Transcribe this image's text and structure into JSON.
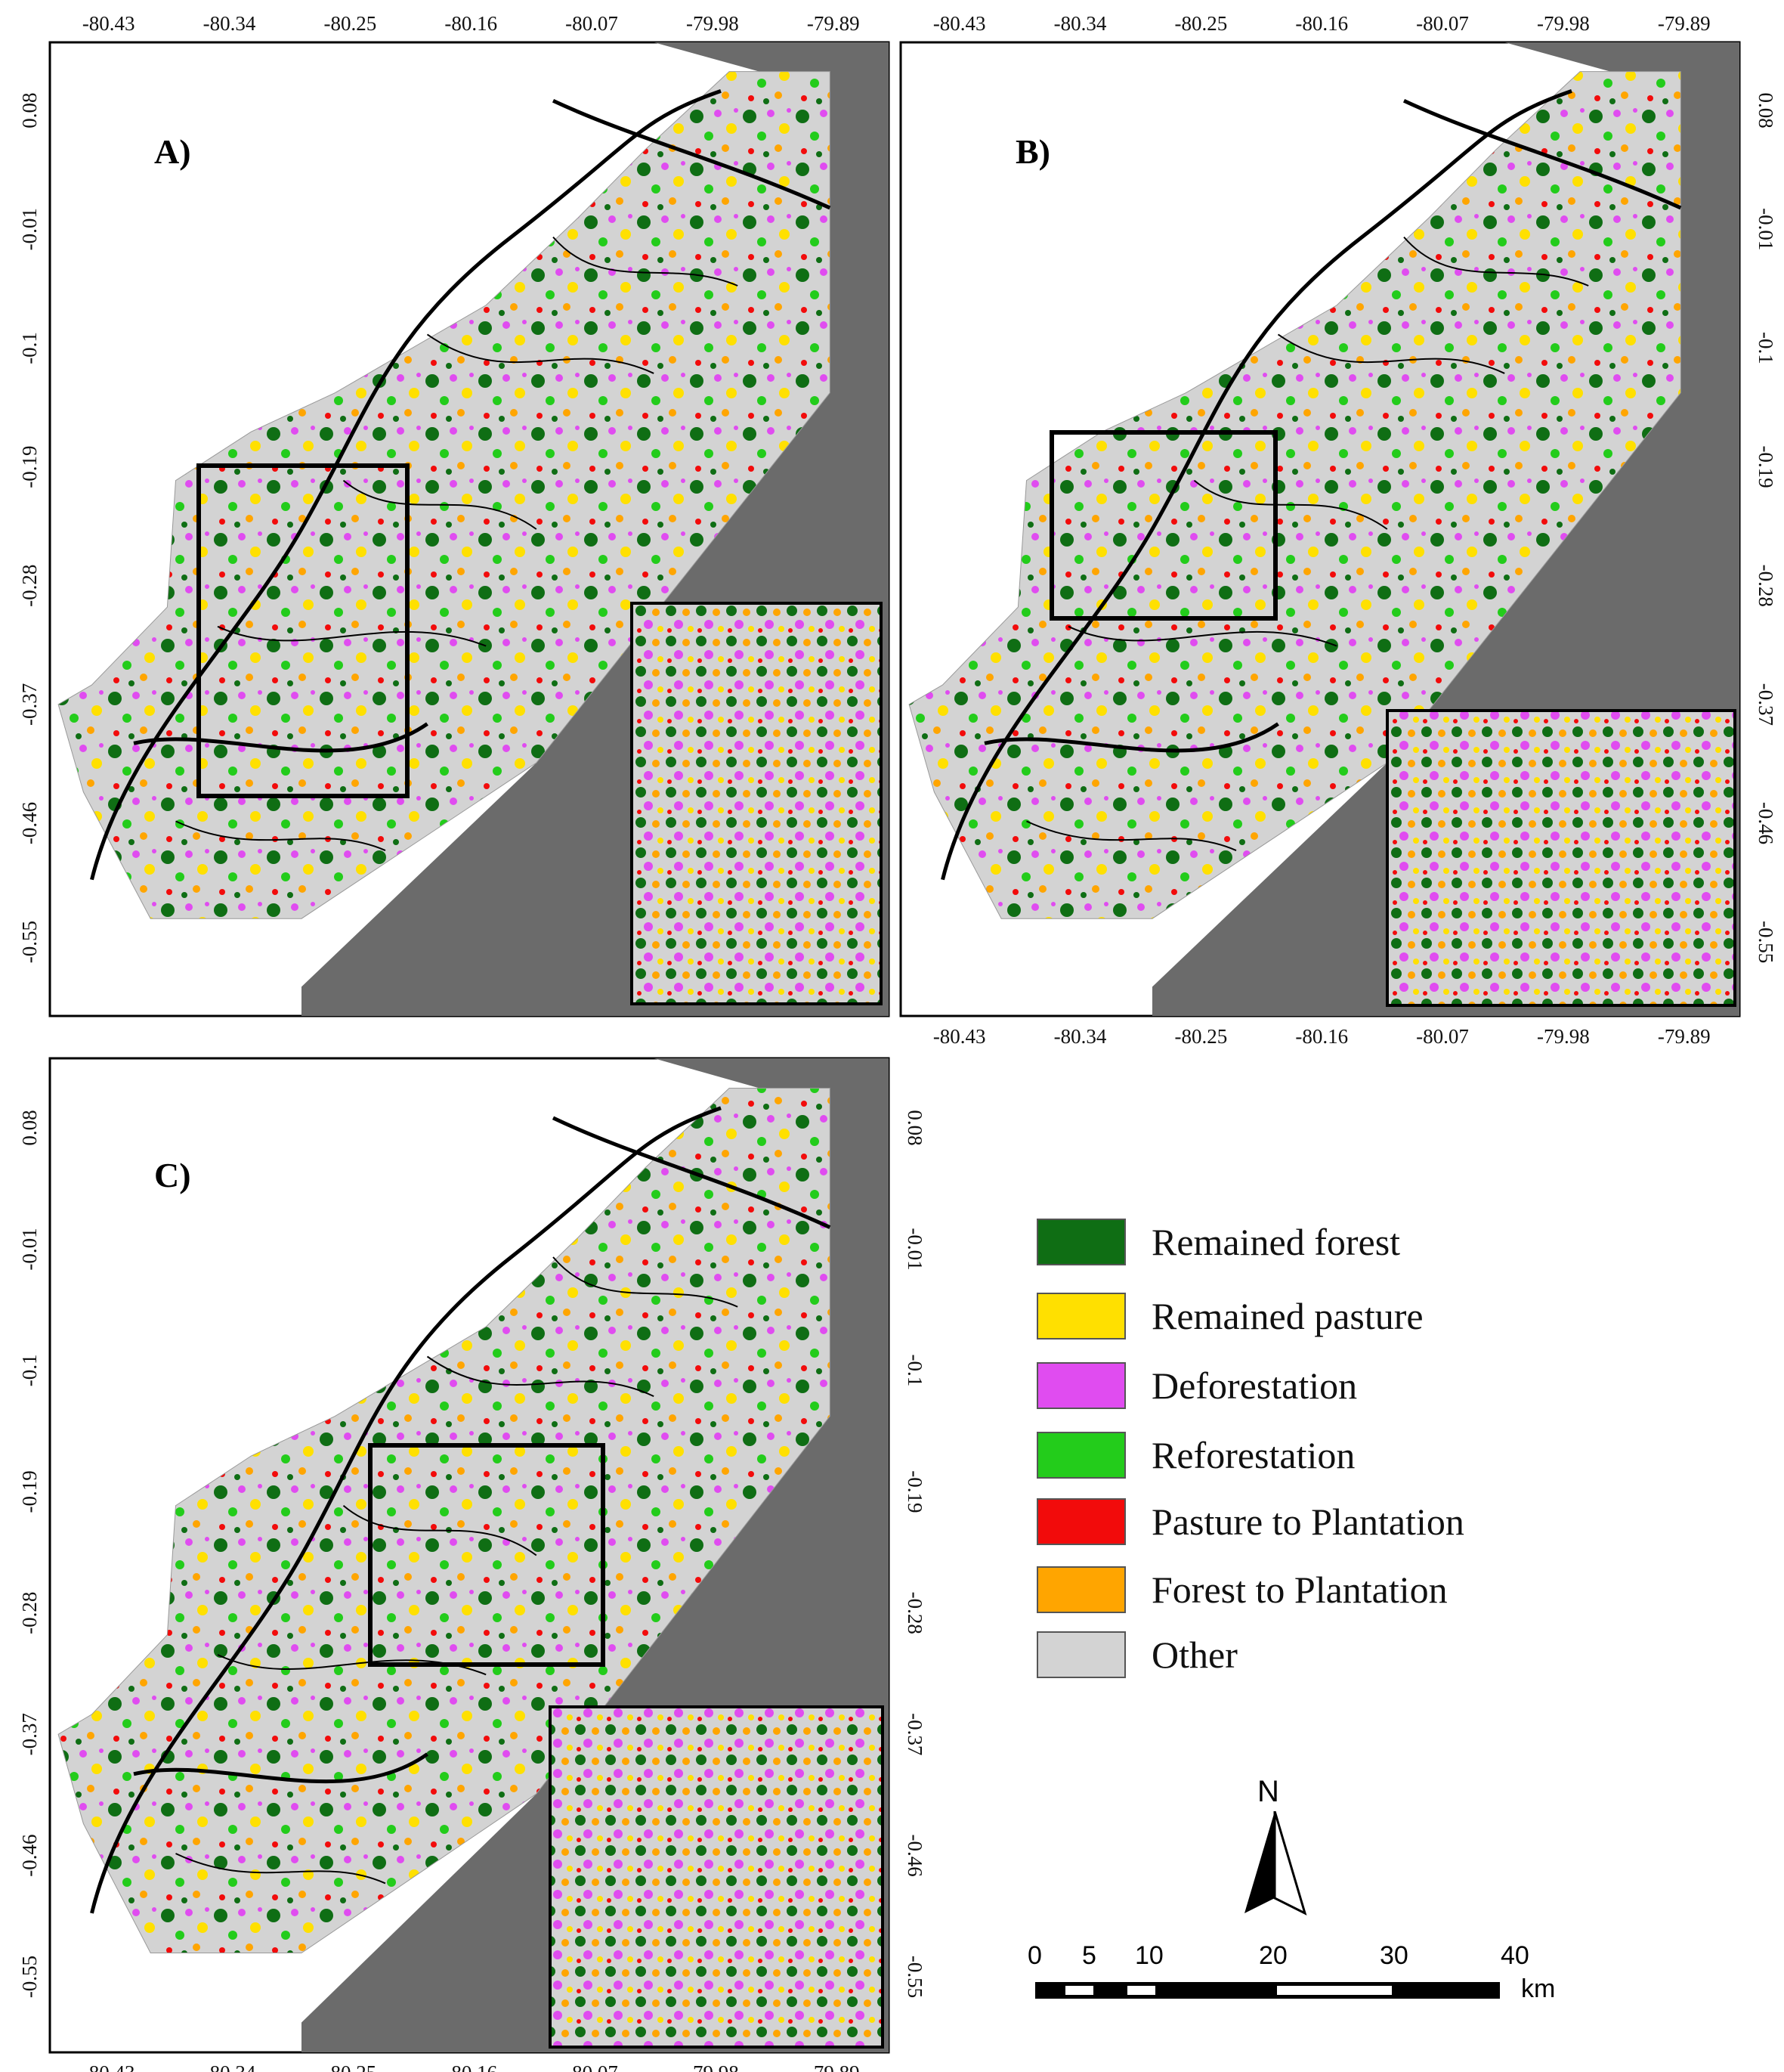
{
  "panels": [
    {
      "letter": "A)"
    },
    {
      "letter": "B)"
    },
    {
      "letter": "C)"
    }
  ],
  "axes": {
    "longitudes": [
      "-80.43",
      "-80.34",
      "-80.25",
      "-80.16",
      "-80.07",
      "-79.98",
      "-79.89"
    ],
    "latitudes": [
      "0.08",
      "-0.01",
      "-0.1",
      "-0.19",
      "-0.28",
      "-0.37",
      "-0.46",
      "-0.55"
    ]
  },
  "legend": [
    {
      "label": "Remained forest",
      "color": "#0f6e14"
    },
    {
      "label": "Remained pasture",
      "color": "#ffe000"
    },
    {
      "label": "Deforestation",
      "color": "#e04cf0"
    },
    {
      "label": "Reforestation",
      "color": "#23cc1b"
    },
    {
      "label": "Pasture to Plantation",
      "color": "#f20b0b"
    },
    {
      "label": "Forest to Plantation",
      "color": "#ffa500"
    },
    {
      "label": "Other",
      "color": "#d3d3d3"
    }
  ],
  "north_arrow": {
    "label": "N"
  },
  "scale_bar": {
    "ticks": [
      "0",
      "5",
      "10",
      "20",
      "30",
      "40"
    ],
    "unit": "km"
  },
  "colors": {
    "sea": "#6b6b6b",
    "land": "#d3d3d3",
    "rivers": "#000000"
  }
}
